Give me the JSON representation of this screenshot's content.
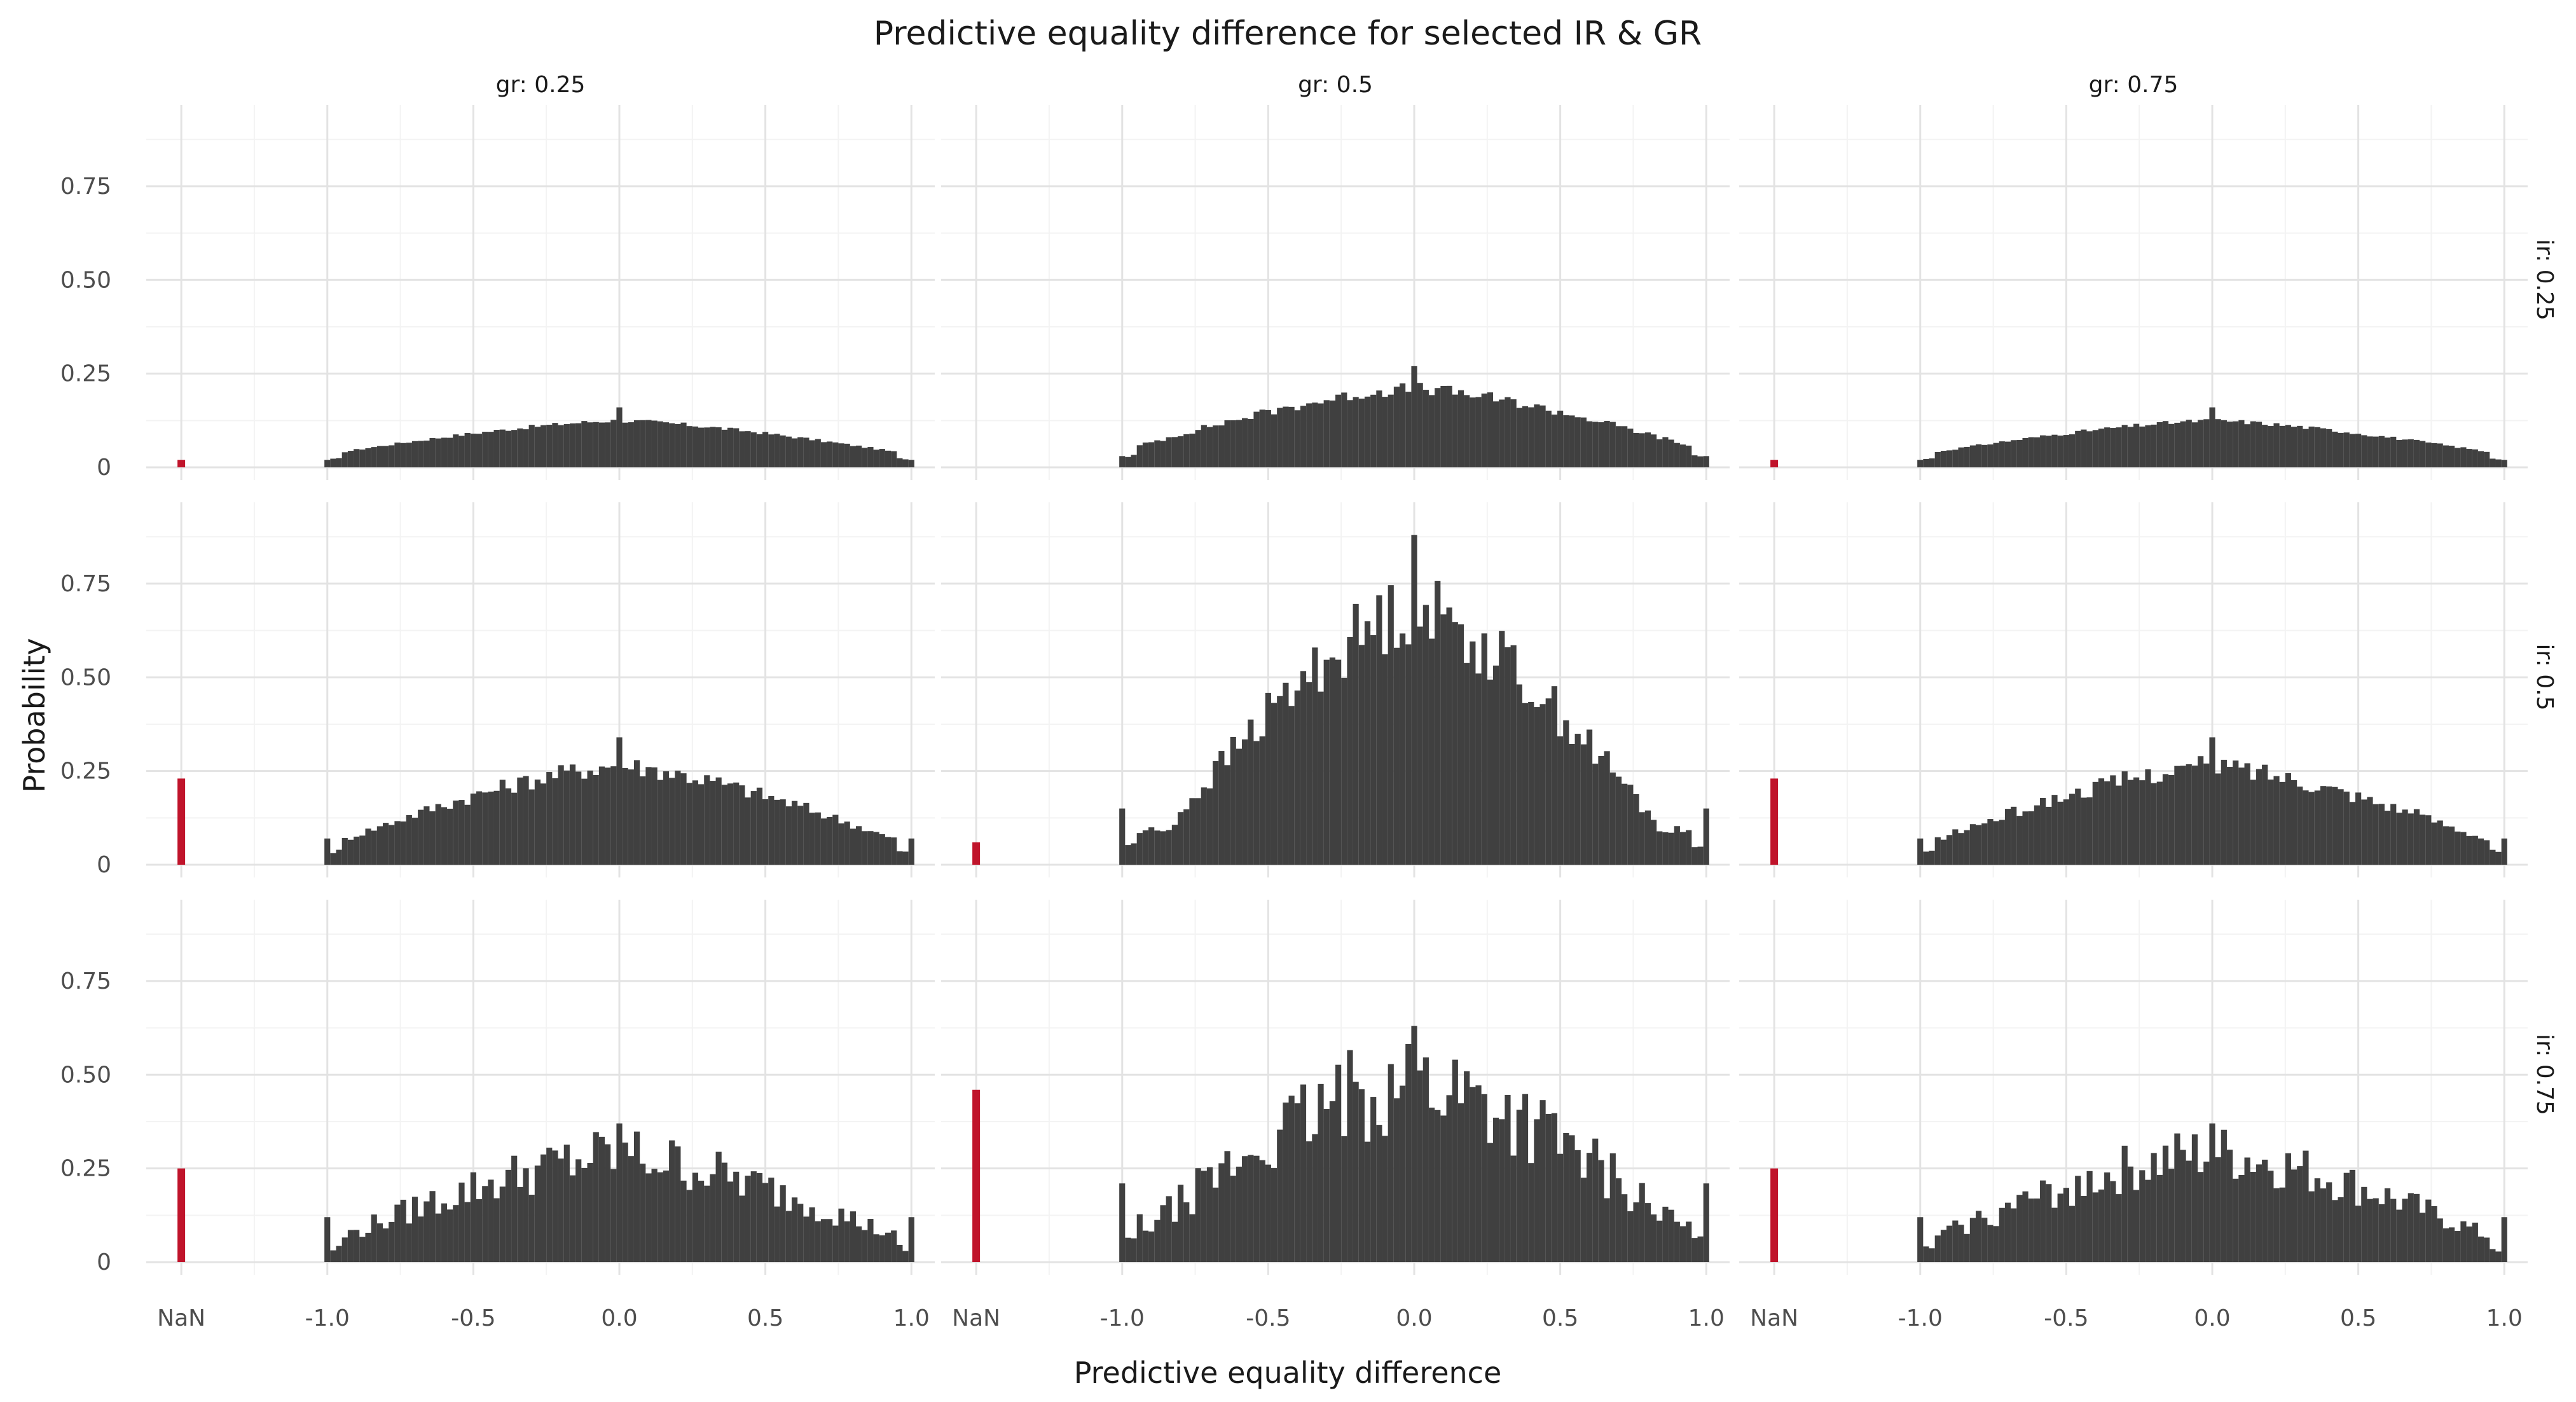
{
  "chart_data": {
    "type": "bar",
    "title": "Predictive equality difference for selected IR & GR",
    "xlabel": "Predictive equality difference",
    "ylabel": "Probability",
    "x_ticks": [
      "NaN",
      "-1.0",
      "-0.5",
      "0.0",
      "0.5",
      "1.0"
    ],
    "y_ticks": [
      "0",
      "0.25",
      "0.50",
      "0.75"
    ],
    "ylim": [
      0,
      0.95
    ],
    "column_facet": [
      "gr: 0.25",
      "gr: 0.5",
      "gr: 0.75"
    ],
    "row_facet": [
      "ir: 0.25",
      "ir: 0.5",
      "ir: 0.75"
    ],
    "grid": true,
    "colors": {
      "bars": "#404040",
      "nan_bar": "#c0142b"
    },
    "panels": [
      {
        "gr": "0.25",
        "ir": "0.25",
        "nan": 0.02,
        "edge": [
          0.02,
          0.02
        ],
        "center": 0.16,
        "base": 0.015,
        "spread": 1.15,
        "jitter": 0.1
      },
      {
        "gr": "0.5",
        "ir": "0.25",
        "nan": 0.0,
        "edge": [
          0.03,
          0.03
        ],
        "center": 0.27,
        "base": 0.02,
        "spread": 1.1,
        "jitter": 0.16
      },
      {
        "gr": "0.75",
        "ir": "0.25",
        "nan": 0.02,
        "edge": [
          0.02,
          0.02
        ],
        "center": 0.16,
        "base": 0.015,
        "spread": 1.15,
        "jitter": 0.1
      },
      {
        "gr": "0.25",
        "ir": "0.5",
        "nan": 0.23,
        "edge": [
          0.07,
          0.07
        ],
        "center": 0.34,
        "base": 0.05,
        "spread": 1.0,
        "jitter": 0.22
      },
      {
        "gr": "0.5",
        "ir": "0.5",
        "nan": 0.06,
        "edge": [
          0.15,
          0.15
        ],
        "center": 0.88,
        "base": 0.09,
        "spread": 0.85,
        "jitter": 0.3
      },
      {
        "gr": "0.75",
        "ir": "0.5",
        "nan": 0.23,
        "edge": [
          0.07,
          0.07
        ],
        "center": 0.34,
        "base": 0.05,
        "spread": 1.0,
        "jitter": 0.22
      },
      {
        "gr": "0.25",
        "ir": "0.75",
        "nan": 0.25,
        "edge": [
          0.12,
          0.12
        ],
        "center": 0.37,
        "base": 0.05,
        "spread": 1.0,
        "jitter": 0.55
      },
      {
        "gr": "0.5",
        "ir": "0.75",
        "nan": 0.46,
        "edge": [
          0.21,
          0.21
        ],
        "center": 0.63,
        "base": 0.1,
        "spread": 0.9,
        "jitter": 0.6
      },
      {
        "gr": "0.75",
        "ir": "0.75",
        "nan": 0.25,
        "edge": [
          0.12,
          0.12
        ],
        "center": 0.37,
        "base": 0.05,
        "spread": 1.0,
        "jitter": 0.55
      }
    ]
  }
}
